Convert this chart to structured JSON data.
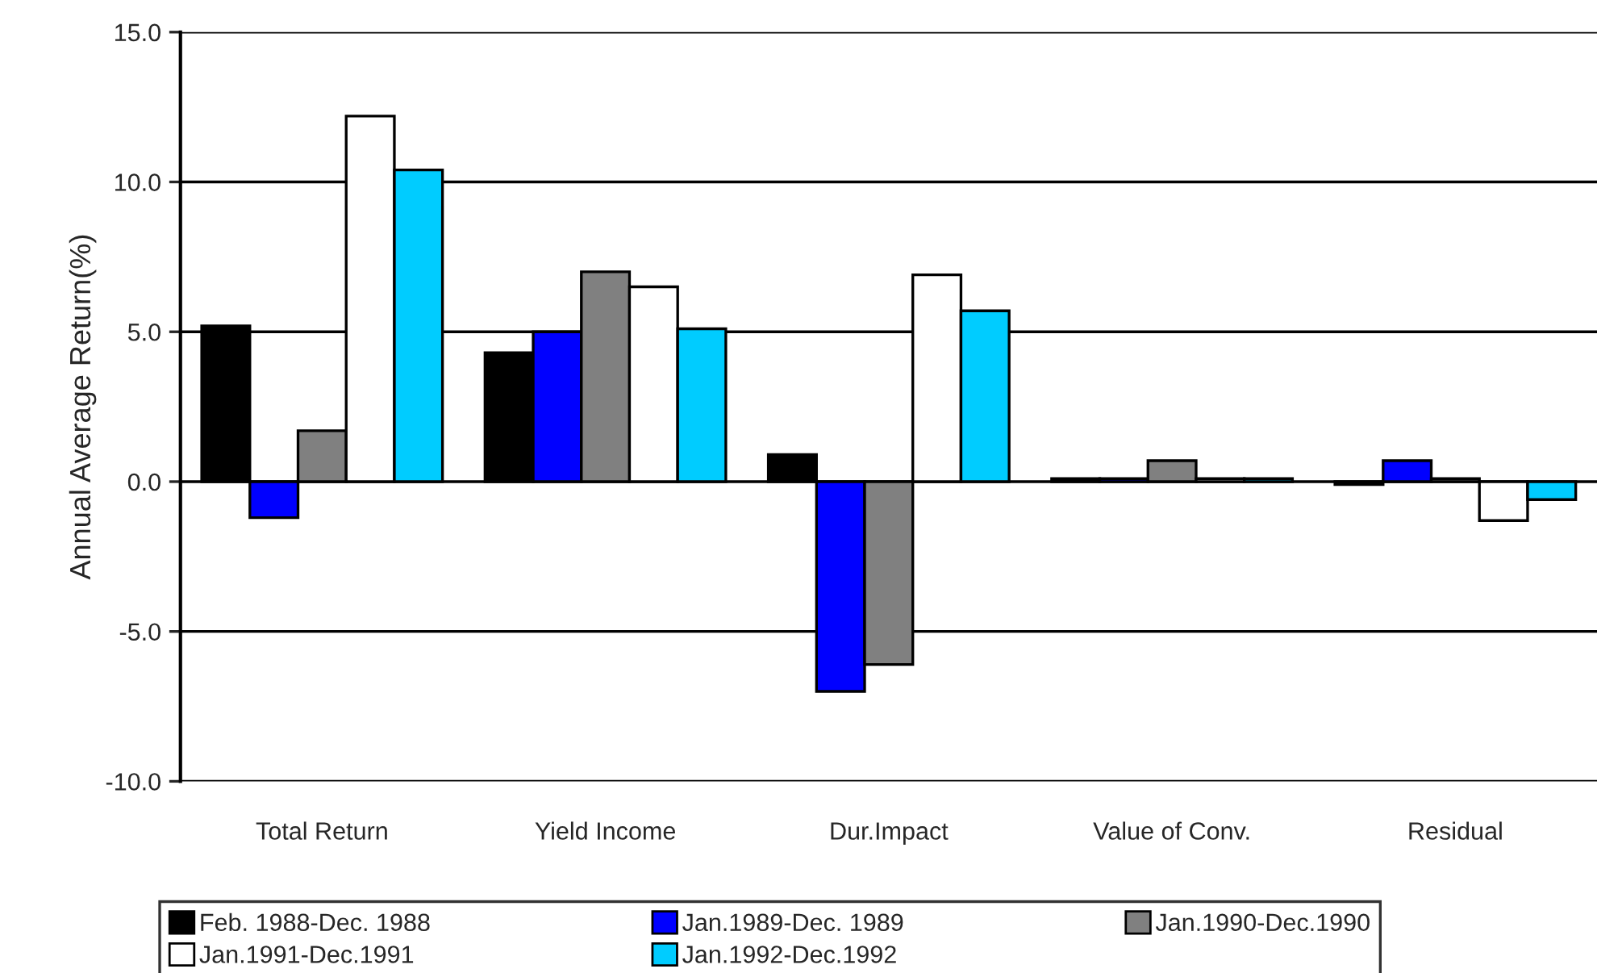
{
  "chart_data": {
    "type": "bar",
    "ylabel": "Annual Average Return(%)",
    "categories": [
      "Total Return",
      "Yield Income",
      "Dur.Impact",
      "Value of Conv.",
      "Residual"
    ],
    "series": [
      {
        "name": "Feb. 1988-Dec. 1988",
        "color": "#000000",
        "values": [
          5.2,
          4.3,
          0.9,
          0.1,
          -0.1
        ]
      },
      {
        "name": "Jan.1989-Dec. 1989",
        "color": "#0000ff",
        "values": [
          -1.2,
          5.0,
          -7.0,
          0.1,
          0.7
        ]
      },
      {
        "name": "Jan.1990-Dec.1990",
        "color": "#808080",
        "values": [
          1.7,
          7.0,
          -6.1,
          0.7,
          0.1
        ]
      },
      {
        "name": "Jan.1991-Dec.1991",
        "color": "#ffffff",
        "values": [
          12.2,
          6.5,
          6.9,
          0.1,
          -1.3
        ]
      },
      {
        "name": "Jan.1992-Dec.1992",
        "color": "#00ccff",
        "values": [
          10.4,
          5.1,
          5.7,
          0.1,
          -0.6
        ]
      }
    ],
    "ylim": [
      -10,
      15
    ],
    "yticks": [
      {
        "value": -10,
        "label": "-10.0"
      },
      {
        "value": -5,
        "label": "-5.0"
      },
      {
        "value": 0,
        "label": "0.0"
      },
      {
        "value": 5,
        "label": "5.0"
      },
      {
        "value": 10,
        "label": "10.0"
      },
      {
        "value": 15,
        "label": "15.0"
      }
    ],
    "grid": "y",
    "legend": "bottom"
  }
}
